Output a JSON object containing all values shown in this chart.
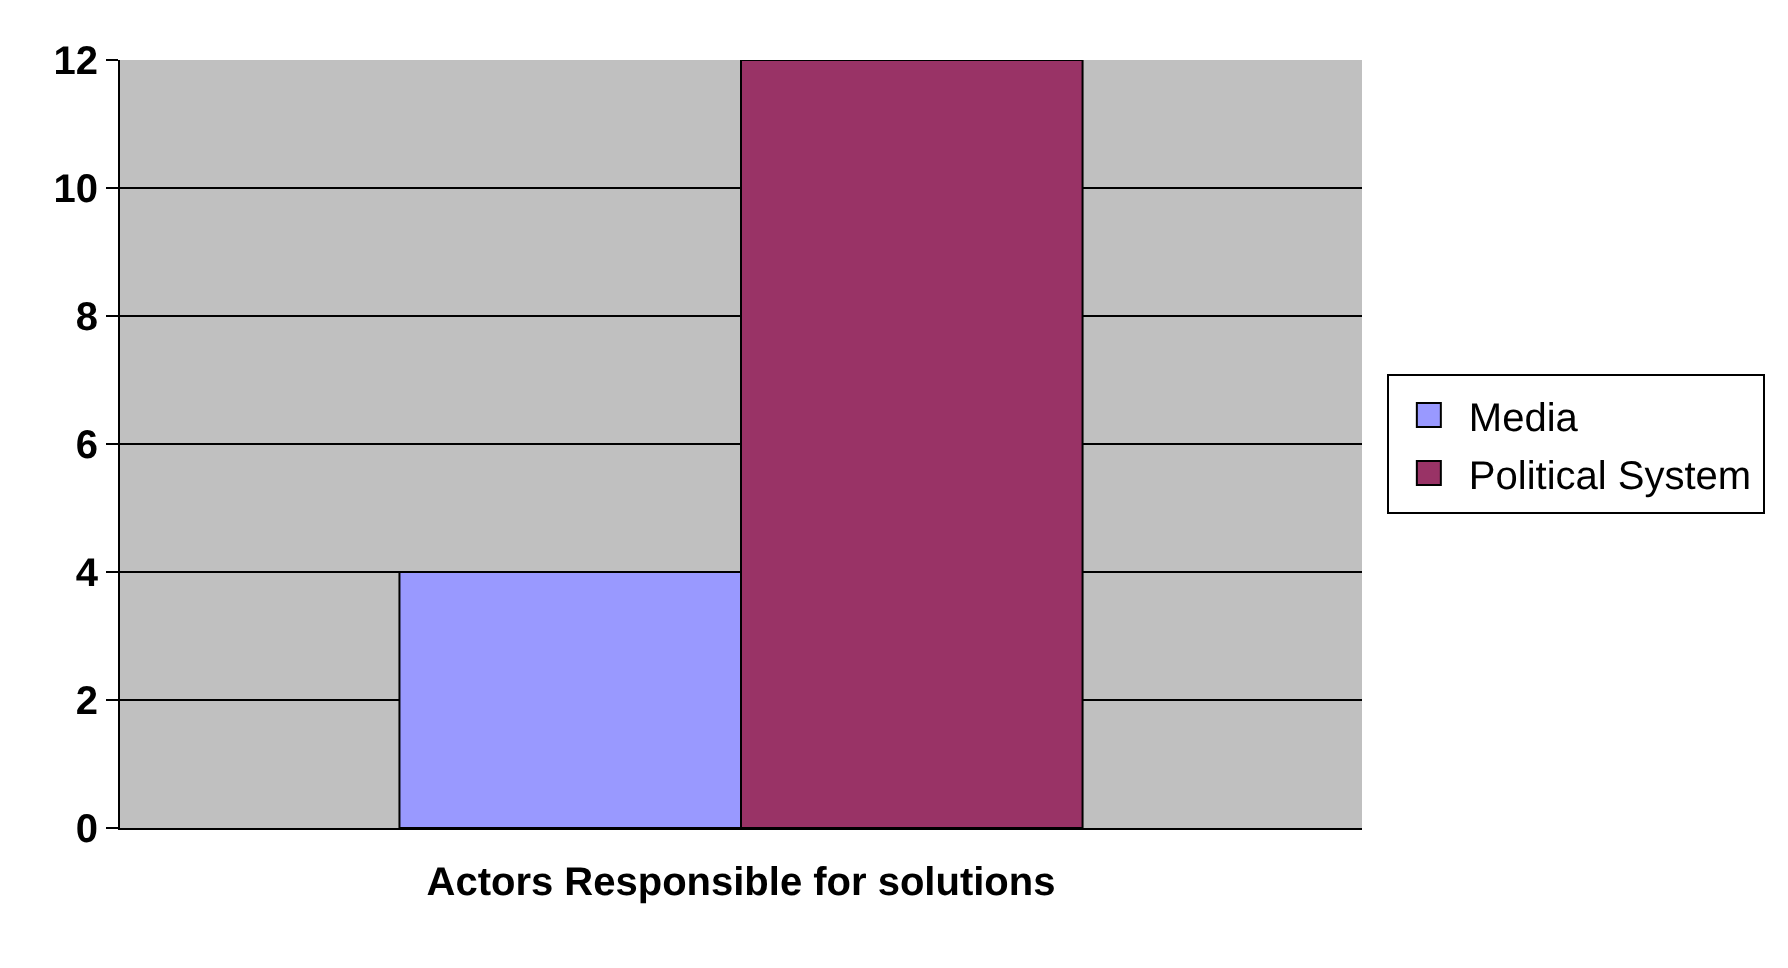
{
  "chart_data": {
    "type": "bar",
    "xlabel": "Actors Responsible for solutions",
    "categories": [
      null
    ],
    "series": [
      {
        "name": "Media",
        "color": "#9999ff",
        "values": [
          4
        ]
      },
      {
        "name": "Political System",
        "color": "#993366",
        "values": [
          12
        ]
      }
    ],
    "ylim": [
      0,
      12
    ],
    "yticks": [
      0,
      2,
      4,
      6,
      8,
      10,
      12
    ],
    "grid": "y",
    "legend": "right"
  }
}
